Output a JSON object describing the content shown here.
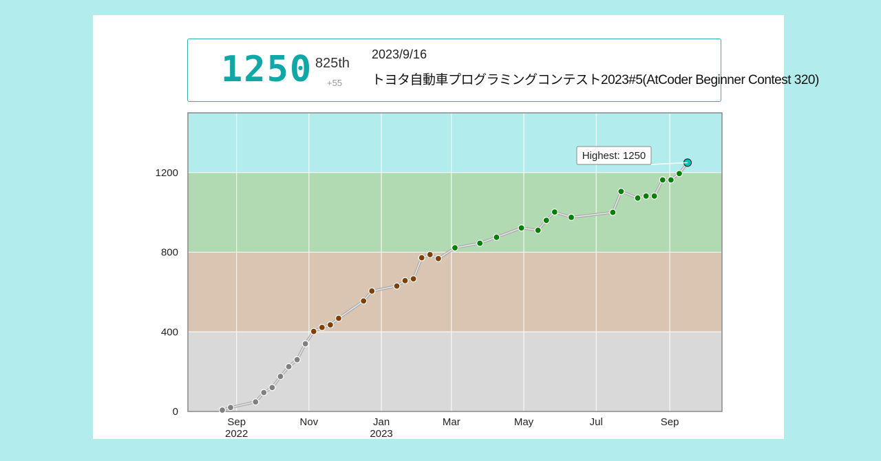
{
  "summary": {
    "rating": "1250",
    "place": "825th",
    "diff": "+55",
    "date": "2023/9/16",
    "contest": "トヨタ自動車プログラミングコンテスト2023#5(AtCoder Beginner Contest 320)"
  },
  "chart_data": {
    "type": "line",
    "title": "",
    "xlabel": "",
    "ylabel": "",
    "ylim": [
      0,
      1500
    ],
    "xlim": [
      "2022-07-22",
      "2023-10-15"
    ],
    "y_ticks": [
      "0",
      "400",
      "800",
      "1200"
    ],
    "x_ticks": [
      {
        "date": "2022-09-01",
        "label": "Sep",
        "sublabel": "2022"
      },
      {
        "date": "2022-11-01",
        "label": "Nov",
        "sublabel": ""
      },
      {
        "date": "2023-01-01",
        "label": "Jan",
        "sublabel": "2023"
      },
      {
        "date": "2023-03-01",
        "label": "Mar",
        "sublabel": ""
      },
      {
        "date": "2023-05-01",
        "label": "May",
        "sublabel": ""
      },
      {
        "date": "2023-07-01",
        "label": "Jul",
        "sublabel": ""
      },
      {
        "date": "2023-09-01",
        "label": "Sep",
        "sublabel": ""
      }
    ],
    "bands": [
      {
        "from": 0,
        "to": 400,
        "color": "#d9d9d9"
      },
      {
        "from": 400,
        "to": 800,
        "color": "#d9c5b2"
      },
      {
        "from": 800,
        "to": 1200,
        "color": "#b2dab2"
      },
      {
        "from": 1200,
        "to": 1500,
        "color": "#b2ecec"
      }
    ],
    "point_colors": [
      {
        "below": 400,
        "color": "#808080"
      },
      {
        "below": 800,
        "color": "#804000"
      },
      {
        "below": 1200,
        "color": "#008000"
      },
      {
        "below": 1600,
        "color": "#00c0c0"
      }
    ],
    "highlight_label": "Highest: 1250",
    "series": [
      {
        "points": [
          [
            "2022-08-20",
            7
          ],
          [
            "2022-08-27",
            20
          ],
          [
            "2022-09-17",
            48
          ],
          [
            "2022-09-24",
            95
          ],
          [
            "2022-10-01",
            120
          ],
          [
            "2022-10-08",
            176
          ],
          [
            "2022-10-15",
            225
          ],
          [
            "2022-10-22",
            260
          ],
          [
            "2022-10-29",
            340
          ],
          [
            "2022-11-05",
            402
          ],
          [
            "2022-11-12",
            422
          ],
          [
            "2022-11-19",
            435
          ],
          [
            "2022-11-26",
            468
          ],
          [
            "2022-12-17",
            555
          ],
          [
            "2022-12-24",
            605
          ],
          [
            "2023-01-14",
            630
          ],
          [
            "2023-01-21",
            657
          ],
          [
            "2023-01-28",
            666
          ],
          [
            "2023-02-04",
            772
          ],
          [
            "2023-02-11",
            788
          ],
          [
            "2023-02-18",
            768
          ],
          [
            "2023-03-04",
            822
          ],
          [
            "2023-03-25",
            845
          ],
          [
            "2023-04-08",
            875
          ],
          [
            "2023-04-29",
            922
          ],
          [
            "2023-05-13",
            910
          ],
          [
            "2023-05-20",
            960
          ],
          [
            "2023-05-27",
            1002
          ],
          [
            "2023-06-10",
            975
          ],
          [
            "2023-07-15",
            1000
          ],
          [
            "2023-07-22",
            1105
          ],
          [
            "2023-08-05",
            1072
          ],
          [
            "2023-08-12",
            1082
          ],
          [
            "2023-08-19",
            1082
          ],
          [
            "2023-08-26",
            1163
          ],
          [
            "2023-09-02",
            1163
          ],
          [
            "2023-09-09",
            1195
          ],
          [
            "2023-09-16",
            1250
          ]
        ]
      }
    ]
  }
}
